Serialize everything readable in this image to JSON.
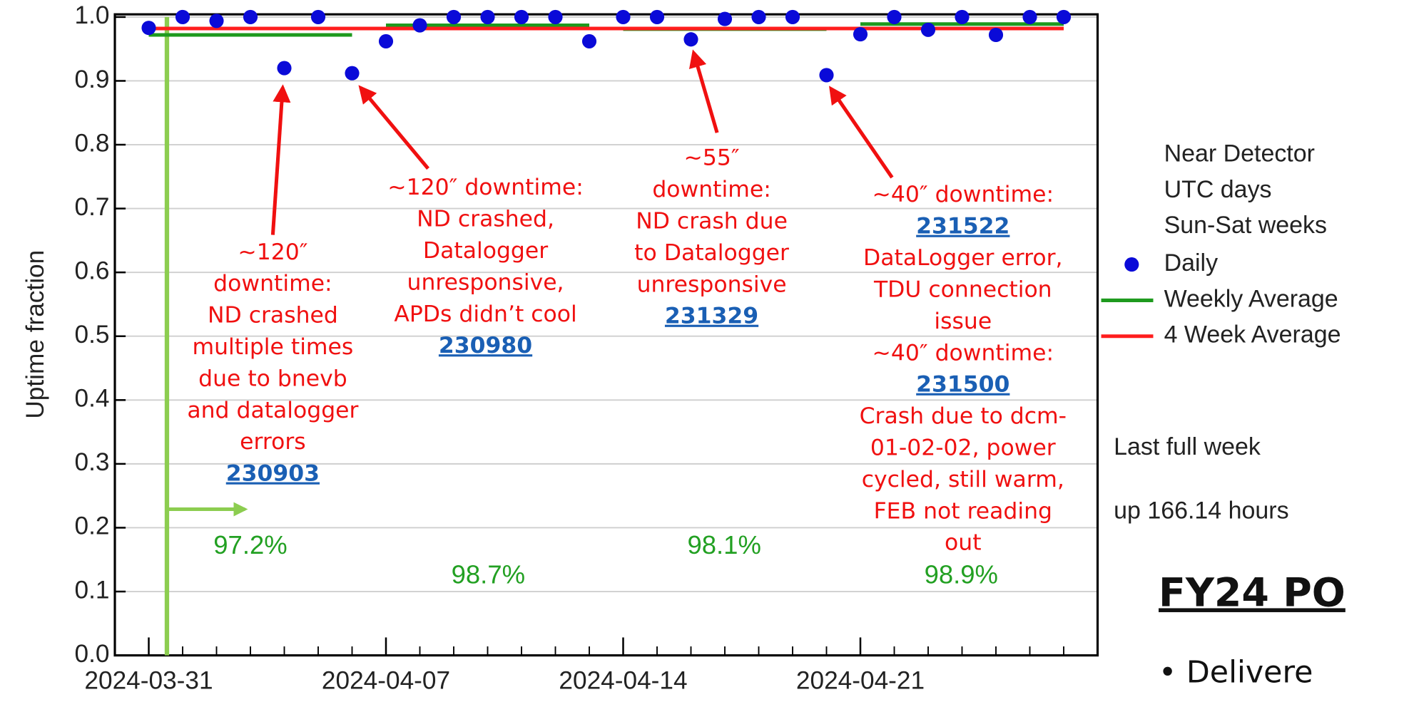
{
  "chart_data": {
    "type": "scatter",
    "ylabel": "Uptime fraction",
    "x": [
      "2024-03-31",
      "2024-04-01",
      "2024-04-02",
      "2024-04-03",
      "2024-04-04",
      "2024-04-05",
      "2024-04-06",
      "2024-04-07",
      "2024-04-08",
      "2024-04-09",
      "2024-04-10",
      "2024-04-11",
      "2024-04-12",
      "2024-04-13",
      "2024-04-14",
      "2024-04-15",
      "2024-04-16",
      "2024-04-17",
      "2024-04-18",
      "2024-04-19",
      "2024-04-20",
      "2024-04-21",
      "2024-04-22",
      "2024-04-23",
      "2024-04-24",
      "2024-04-25",
      "2024-04-26",
      "2024-04-27"
    ],
    "series": [
      {
        "name": "Daily",
        "color": "#0a0ad8",
        "values": [
          0.983,
          1.0,
          0.994,
          1.0,
          0.92,
          1.0,
          0.912,
          0.962,
          0.987,
          1.0,
          1.0,
          1.0,
          1.0,
          0.962,
          1.0,
          1.0,
          0.965,
          0.997,
          1.0,
          1.0,
          0.909,
          0.973,
          1.0,
          0.98,
          1.0,
          0.972,
          1.0,
          1.0
        ]
      },
      {
        "name": "Weekly Average",
        "color": "#1e9a1e",
        "x": [
          "2024-03-31",
          "2024-04-07",
          "2024-04-14",
          "2024-04-21"
        ],
        "values": [
          0.972,
          0.987,
          0.981,
          0.989
        ],
        "value_labels": [
          "97.2%",
          "98.7%",
          "98.1%",
          "98.9%"
        ],
        "label_color": "#22a022"
      },
      {
        "name": "4 Week Average",
        "color": "#ff1e1e",
        "x": [
          "2024-03-31",
          "2024-04-27"
        ],
        "values": [
          0.982,
          0.982
        ]
      }
    ],
    "xlim": [
      "2024-03-30",
      "2024-04-28"
    ],
    "xticks": [
      "2024-03-31",
      "2024-04-07",
      "2024-04-14",
      "2024-04-21"
    ],
    "ylim": [
      0,
      1
    ],
    "yticks": [
      {
        "value": 0,
        "label": "0.0"
      },
      0.1,
      0.2,
      0.3,
      0.4,
      0.5,
      0.6,
      0.7,
      0.8,
      0.9,
      {
        "value": 1,
        "label": "1.0"
      }
    ],
    "grid": true,
    "legend_header": [
      "Near Detector",
      "UTC days",
      "Sun-Sat weeks"
    ],
    "notes": [
      "Last full week",
      "up 166.14 hours"
    ],
    "annotations": [
      {
        "lines": [
          {
            "text": "~120″"
          },
          {
            "text": "downtime:"
          },
          {
            "text": "ND crashed"
          },
          {
            "text": "multiple times"
          },
          {
            "text": "due to bnevb"
          },
          {
            "text": "and datalogger"
          },
          {
            "text": "errors"
          },
          {
            "link": "230903"
          }
        ]
      },
      {
        "lines": [
          {
            "text": "~120″ downtime:"
          },
          {
            "text": "ND crashed,"
          },
          {
            "text": "Datalogger"
          },
          {
            "text": "unresponsive,"
          },
          {
            "text": "APDs didn’t cool"
          },
          {
            "link": "230980"
          }
        ]
      },
      {
        "lines": [
          {
            "text": "~55″"
          },
          {
            "text": "downtime:"
          },
          {
            "text": "ND crash due"
          },
          {
            "text": "to Datalogger"
          },
          {
            "text": "unresponsive"
          },
          {
            "link": "231329"
          }
        ]
      },
      {
        "lines": [
          {
            "text": "~40″ downtime:"
          },
          {
            "link": "231522"
          },
          {
            "text": "DataLogger error,"
          },
          {
            "text": "TDU connection"
          },
          {
            "text": "issue"
          },
          {
            "text": "~40″ downtime:"
          },
          {
            "link": "231500"
          },
          {
            "text": "Crash due to dcm-"
          },
          {
            "text": "01-02-02, power"
          },
          {
            "text": "cycled, still warm,"
          },
          {
            "text": "FEB not reading"
          },
          {
            "text": "out"
          }
        ]
      }
    ]
  },
  "slide": {
    "heading": "FY24 PO",
    "bullet": "• Delivere"
  }
}
